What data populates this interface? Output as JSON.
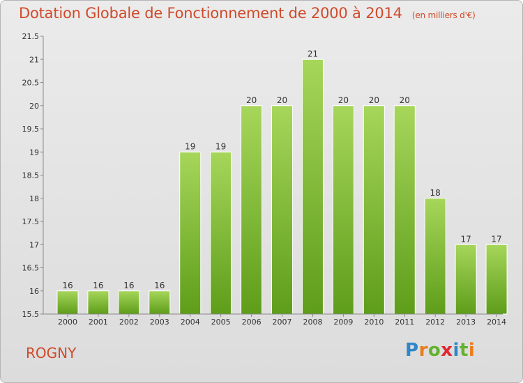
{
  "chart_data": {
    "type": "bar",
    "title": "Dotation Globale de Fonctionnement de 2000 à 2014",
    "subtitle": "(en milliers d'€)",
    "categories": [
      "2000",
      "2001",
      "2002",
      "2003",
      "2004",
      "2005",
      "2006",
      "2007",
      "2008",
      "2009",
      "2010",
      "2011",
      "2012",
      "2013",
      "2014"
    ],
    "values": [
      16,
      16,
      16,
      16,
      19,
      19,
      20,
      20,
      21,
      20,
      20,
      20,
      18,
      17,
      17
    ],
    "data_labels": [
      "16",
      "16",
      "16",
      "16",
      "19",
      "19",
      "20",
      "20",
      "21",
      "20",
      "20",
      "20",
      "18",
      "17",
      "17"
    ],
    "ylim": [
      15.5,
      21.5
    ],
    "yticks": [
      15.5,
      16,
      16.5,
      17,
      17.5,
      18,
      18.5,
      19,
      19.5,
      20,
      20.5,
      21,
      21.5
    ],
    "ytick_labels": [
      "15.5",
      "16",
      "16.5",
      "17",
      "17.5",
      "18",
      "18.5",
      "19",
      "19.5",
      "20",
      "20.5",
      "21",
      "21.5"
    ],
    "xlabel": "",
    "ylabel": "",
    "grid": "none",
    "colors": {
      "bar_top": "#a6d65a",
      "bar_bottom": "#5e9d1a",
      "axis": "#888888",
      "text": "#333333",
      "accent": "#d04a2a"
    }
  },
  "location": "ROGNY",
  "logo": {
    "letters": [
      "P",
      "r",
      "o",
      "x",
      "i",
      "t",
      "i"
    ]
  }
}
